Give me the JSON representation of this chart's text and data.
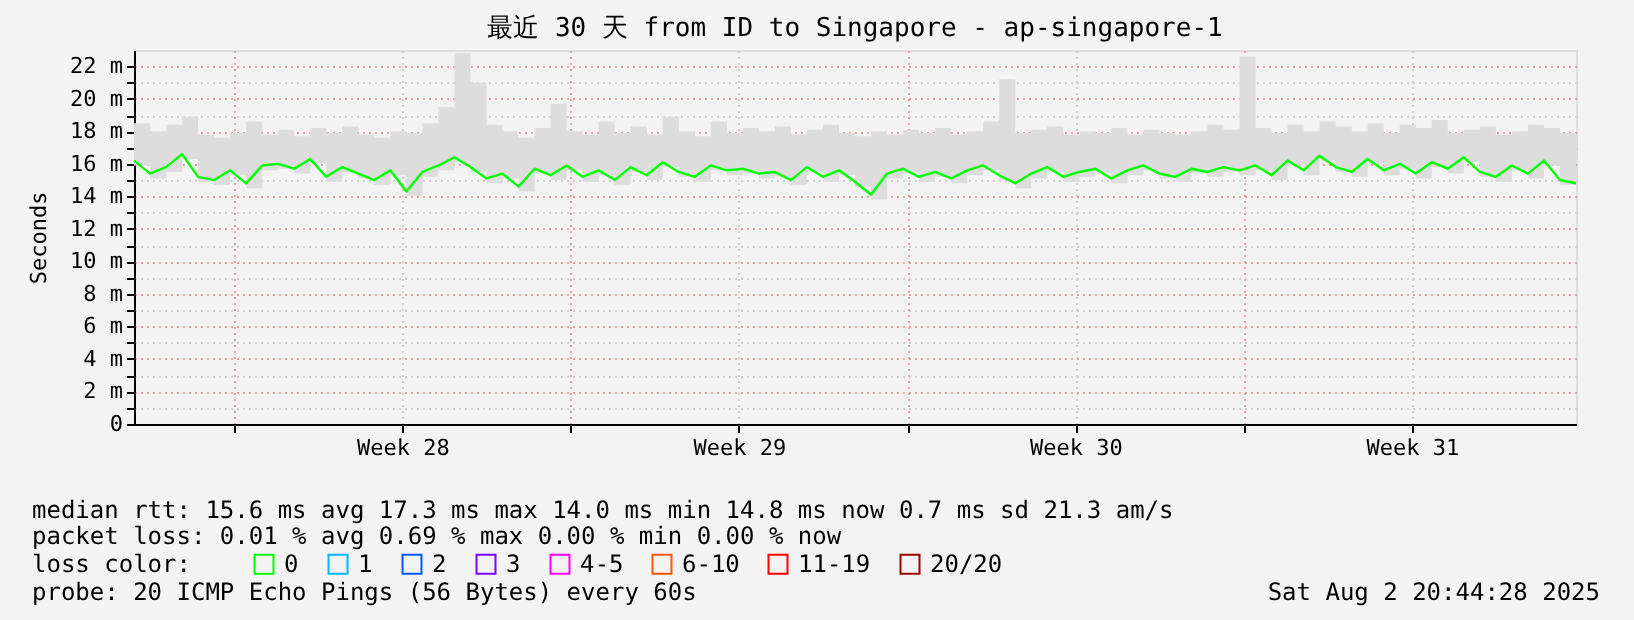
{
  "chart_data": {
    "type": "line",
    "title": "最近 30 天 from ID to Singapore - ap-singapore-1",
    "ylabel": "Seconds",
    "x": [
      "2025-07-03T22:00",
      "2025-07-04T06:00",
      "2025-07-04T14:00",
      "2025-07-04T22:00",
      "2025-07-05T06:00",
      "2025-07-05T14:00",
      "2025-07-05T22:00",
      "2025-07-06T06:00",
      "2025-07-06T14:00",
      "2025-07-06T22:00",
      "2025-07-07T06:00",
      "2025-07-07T14:00",
      "2025-07-07T22:00",
      "2025-07-08T06:00",
      "2025-07-08T14:00",
      "2025-07-08T22:00",
      "2025-07-09T06:00",
      "2025-07-09T14:00",
      "2025-07-09T22:00",
      "2025-07-10T06:00",
      "2025-07-10T14:00",
      "2025-07-10T22:00",
      "2025-07-11T06:00",
      "2025-07-11T14:00",
      "2025-07-11T22:00",
      "2025-07-12T06:00",
      "2025-07-12T14:00",
      "2025-07-12T22:00",
      "2025-07-13T06:00",
      "2025-07-13T14:00",
      "2025-07-13T22:00",
      "2025-07-14T06:00",
      "2025-07-14T14:00",
      "2025-07-14T22:00",
      "2025-07-15T06:00",
      "2025-07-15T14:00",
      "2025-07-15T22:00",
      "2025-07-16T06:00",
      "2025-07-16T14:00",
      "2025-07-16T22:00",
      "2025-07-17T06:00",
      "2025-07-17T14:00",
      "2025-07-17T22:00",
      "2025-07-18T06:00",
      "2025-07-18T14:00",
      "2025-07-18T22:00",
      "2025-07-19T06:00",
      "2025-07-19T14:00",
      "2025-07-19T22:00",
      "2025-07-20T06:00",
      "2025-07-20T14:00",
      "2025-07-20T22:00",
      "2025-07-21T06:00",
      "2025-07-21T14:00",
      "2025-07-21T22:00",
      "2025-07-22T06:00",
      "2025-07-22T14:00",
      "2025-07-22T22:00",
      "2025-07-23T06:00",
      "2025-07-23T14:00",
      "2025-07-23T22:00",
      "2025-07-24T06:00",
      "2025-07-24T14:00",
      "2025-07-24T22:00",
      "2025-07-25T06:00",
      "2025-07-25T14:00",
      "2025-07-25T22:00",
      "2025-07-26T06:00",
      "2025-07-26T14:00",
      "2025-07-26T22:00",
      "2025-07-27T06:00",
      "2025-07-27T14:00",
      "2025-07-27T22:00",
      "2025-07-28T06:00",
      "2025-07-28T14:00",
      "2025-07-28T22:00",
      "2025-07-29T06:00",
      "2025-07-29T14:00",
      "2025-07-29T22:00",
      "2025-07-30T06:00",
      "2025-07-30T14:00",
      "2025-07-30T22:00",
      "2025-07-31T06:00",
      "2025-07-31T14:00",
      "2025-07-31T22:00",
      "2025-08-01T06:00",
      "2025-08-01T14:00",
      "2025-08-01T22:00",
      "2025-08-02T06:00",
      "2025-08-02T14:00",
      "2025-08-02T22:00"
    ],
    "xlim": [
      "2025-07-03T22:00",
      "2025-08-02T22:00"
    ],
    "xticks": [
      {
        "value": "2025-07-06T00:00",
        "label": null
      },
      {
        "value": "2025-07-09T12:00",
        "label": "Week 28"
      },
      {
        "value": "2025-07-13T00:00",
        "label": null
      },
      {
        "value": "2025-07-16T12:00",
        "label": "Week 29"
      },
      {
        "value": "2025-07-20T00:00",
        "label": null
      },
      {
        "value": "2025-07-23T12:00",
        "label": "Week 30"
      },
      {
        "value": "2025-07-27T00:00",
        "label": null
      },
      {
        "value": "2025-07-30T12:00",
        "label": "Week 31"
      }
    ],
    "ylim": [
      0,
      23
    ],
    "yticks": [
      {
        "value": 0,
        "label": "0"
      },
      {
        "value": 1,
        "label": null
      },
      {
        "value": 2,
        "label": "2 m"
      },
      {
        "value": 3,
        "label": null
      },
      {
        "value": 4,
        "label": "4 m"
      },
      {
        "value": 5,
        "label": null
      },
      {
        "value": 6,
        "label": "6 m"
      },
      {
        "value": 7,
        "label": null
      },
      {
        "value": 8,
        "label": "8 m"
      },
      {
        "value": 9,
        "label": null
      },
      {
        "value": 10,
        "label": "10 m"
      },
      {
        "value": 11,
        "label": null
      },
      {
        "value": 12,
        "label": "12 m"
      },
      {
        "value": 13,
        "label": null
      },
      {
        "value": 14,
        "label": "14 m"
      },
      {
        "value": 15,
        "label": null
      },
      {
        "value": 16,
        "label": "16 m"
      },
      {
        "value": 17,
        "label": null
      },
      {
        "value": 18,
        "label": "18 m"
      },
      {
        "value": 19,
        "label": null
      },
      {
        "value": 20,
        "label": "20 m"
      },
      {
        "value": 21,
        "label": null
      },
      {
        "value": 22,
        "label": "22 m"
      }
    ],
    "grid": true,
    "legend": "bottom",
    "legend_title": "loss color:",
    "annotations": [
      "median rtt:  15.6 ms avg  17.3 ms max  14.0 ms min  14.8 ms now  0.7 ms sd  21.3   am/s",
      "packet loss: 0.01 % avg  0.69 % max  0.00 % min  0.00 % now",
      "probe:       20 ICMP Echo Pings (56 Bytes) every 60s",
      "Sat Aug  2 20:44:28 2025"
    ],
    "series": [
      {
        "name": "0",
        "color": "#00ff00",
        "values": [
          16.2,
          15.4,
          15.8,
          16.6,
          15.2,
          15.0,
          15.6,
          14.8,
          15.9,
          16.0,
          15.7,
          16.3,
          15.2,
          15.8,
          15.4,
          15.0,
          15.6,
          14.3,
          15.5,
          15.9,
          16.4,
          15.8,
          15.1,
          15.4,
          14.6,
          15.7,
          15.3,
          15.9,
          15.2,
          15.6,
          15.0,
          15.8,
          15.3,
          16.1,
          15.5,
          15.2,
          15.9,
          15.6,
          15.7,
          15.4,
          15.5,
          15.0,
          15.8,
          15.2,
          15.6,
          14.9,
          14.1,
          15.4,
          15.7,
          15.2,
          15.5,
          15.1,
          15.6,
          15.9,
          15.3,
          14.8,
          15.4,
          15.8,
          15.2,
          15.5,
          15.7,
          15.1,
          15.6,
          15.9,
          15.4,
          15.2,
          15.7,
          15.5,
          15.8,
          15.6,
          15.9,
          15.3,
          16.2,
          15.6,
          16.5,
          15.8,
          15.5,
          16.3,
          15.6,
          16.0,
          15.4,
          16.1,
          15.7,
          16.4,
          15.5,
          15.2,
          15.9,
          15.4,
          16.2,
          15.0,
          14.8
        ],
        "lower": [
          15.9,
          15.1,
          15.5,
          16.3,
          14.9,
          14.7,
          15.3,
          14.5,
          15.6,
          15.7,
          15.4,
          16.0,
          14.9,
          15.5,
          15.1,
          14.7,
          15.3,
          14.0,
          15.2,
          15.6,
          16.1,
          15.5,
          14.8,
          15.1,
          14.3,
          15.4,
          15.0,
          15.6,
          14.9,
          15.3,
          14.7,
          15.5,
          15.0,
          15.8,
          15.2,
          14.9,
          15.6,
          15.3,
          15.4,
          15.1,
          15.2,
          14.7,
          15.5,
          14.9,
          15.3,
          14.6,
          13.8,
          15.1,
          15.4,
          14.9,
          15.2,
          14.8,
          15.3,
          15.6,
          15.0,
          14.5,
          15.1,
          15.5,
          14.9,
          15.2,
          15.4,
          14.8,
          15.3,
          15.6,
          15.1,
          14.9,
          15.4,
          15.2,
          15.5,
          15.3,
          15.6,
          15.0,
          15.9,
          15.3,
          16.2,
          15.5,
          15.2,
          16.0,
          15.3,
          15.7,
          15.1,
          15.8,
          15.4,
          16.1,
          15.2,
          14.9,
          15.6,
          15.1,
          15.9,
          14.7,
          14.5
        ],
        "upper": [
          18.5,
          18.0,
          18.4,
          18.9,
          17.8,
          17.6,
          17.9,
          18.6,
          17.8,
          18.1,
          17.7,
          18.2,
          17.9,
          18.3,
          17.8,
          17.6,
          18.0,
          17.9,
          18.5,
          19.5,
          22.8,
          21.0,
          18.4,
          18.0,
          17.6,
          18.2,
          19.7,
          18.0,
          17.8,
          18.6,
          17.9,
          18.3,
          17.8,
          18.9,
          18.0,
          17.7,
          18.6,
          17.9,
          18.2,
          18.0,
          18.3,
          17.8,
          18.1,
          18.4,
          17.9,
          17.7,
          18.0,
          17.8,
          18.1,
          17.9,
          18.2,
          17.8,
          18.0,
          18.6,
          21.2,
          17.9,
          18.1,
          18.3,
          17.8,
          18.0,
          17.9,
          18.2,
          17.8,
          18.1,
          17.9,
          17.8,
          18.0,
          18.4,
          18.1,
          22.6,
          18.2,
          17.9,
          18.4,
          18.0,
          18.6,
          18.3,
          18.0,
          18.5,
          17.9,
          18.4,
          18.2,
          18.7,
          17.9,
          18.1,
          18.3,
          17.8,
          18.0,
          18.4,
          18.2,
          17.9,
          18.1
        ]
      },
      {
        "name": "1",
        "color": "#00b8ff",
        "values": [
          null,
          null,
          null,
          null,
          null,
          null,
          null,
          null,
          null,
          null,
          null,
          null,
          null,
          null,
          null,
          null,
          null,
          null,
          null,
          null,
          null,
          null,
          null,
          null,
          null,
          null,
          null,
          null,
          null,
          null,
          null,
          null,
          null,
          null,
          null,
          null,
          null,
          null,
          null,
          null,
          null,
          null,
          null,
          null,
          null,
          null,
          null,
          null,
          null,
          null,
          null,
          null,
          null,
          null,
          null,
          null,
          null,
          null,
          null,
          null,
          null,
          null,
          null,
          null,
          null,
          null,
          null,
          null,
          null,
          null,
          null,
          null,
          null,
          null,
          null,
          null,
          null,
          null,
          null,
          null,
          null,
          null,
          null,
          null,
          null,
          null,
          null,
          null,
          null,
          null,
          null
        ]
      },
      {
        "name": "2",
        "color": "#0059ff",
        "values": [
          null,
          null,
          null,
          null,
          null,
          null,
          null,
          null,
          null,
          null,
          null,
          null,
          null,
          null,
          null,
          null,
          null,
          null,
          null,
          null,
          null,
          null,
          null,
          null,
          null,
          null,
          null,
          null,
          null,
          null,
          null,
          null,
          null,
          null,
          null,
          null,
          null,
          null,
          null,
          null,
          null,
          null,
          null,
          null,
          null,
          null,
          null,
          null,
          null,
          null,
          null,
          null,
          null,
          null,
          null,
          null,
          null,
          null,
          null,
          null,
          null,
          null,
          null,
          null,
          null,
          null,
          null,
          null,
          null,
          null,
          null,
          null,
          null,
          null,
          null,
          null,
          null,
          null,
          null,
          null,
          null,
          null,
          null,
          null,
          null,
          null,
          null,
          null,
          null,
          null,
          null
        ]
      },
      {
        "name": "3",
        "color": "#7e00ff",
        "values": [
          null,
          null,
          null,
          null,
          null,
          null,
          null,
          null,
          null,
          null,
          null,
          null,
          null,
          null,
          null,
          null,
          null,
          null,
          null,
          null,
          null,
          null,
          null,
          null,
          null,
          null,
          null,
          null,
          null,
          null,
          null,
          null,
          null,
          null,
          null,
          null,
          null,
          null,
          null,
          null,
          null,
          null,
          null,
          null,
          null,
          null,
          null,
          null,
          null,
          null,
          null,
          null,
          null,
          null,
          null,
          null,
          null,
          null,
          null,
          null,
          null,
          null,
          null,
          null,
          null,
          null,
          null,
          null,
          null,
          null,
          null,
          null,
          null,
          null,
          null,
          null,
          null,
          null,
          null,
          null,
          null,
          null,
          null,
          null,
          null,
          null,
          null,
          null,
          null,
          null,
          null
        ]
      },
      {
        "name": "4-5",
        "color": "#ff00ff",
        "values": [
          null,
          null,
          null,
          null,
          null,
          null,
          null,
          null,
          null,
          null,
          null,
          null,
          null,
          null,
          null,
          null,
          null,
          null,
          null,
          null,
          null,
          null,
          null,
          null,
          null,
          null,
          null,
          null,
          null,
          null,
          null,
          null,
          null,
          null,
          null,
          null,
          null,
          null,
          null,
          null,
          null,
          null,
          null,
          null,
          null,
          null,
          null,
          null,
          null,
          null,
          null,
          null,
          null,
          null,
          null,
          null,
          null,
          null,
          null,
          null,
          null,
          null,
          null,
          null,
          null,
          null,
          null,
          null,
          null,
          null,
          null,
          null,
          null,
          null,
          null,
          null,
          null,
          null,
          null,
          null,
          null,
          null,
          null,
          null,
          null,
          null,
          null,
          null,
          null,
          null,
          null
        ]
      },
      {
        "name": "6-10",
        "color": "#ff5500",
        "values": [
          null,
          null,
          null,
          null,
          null,
          null,
          null,
          null,
          null,
          null,
          null,
          null,
          null,
          null,
          null,
          null,
          null,
          null,
          null,
          null,
          null,
          null,
          null,
          null,
          null,
          null,
          null,
          null,
          null,
          null,
          null,
          null,
          null,
          null,
          null,
          null,
          null,
          null,
          null,
          null,
          null,
          null,
          null,
          null,
          null,
          null,
          null,
          null,
          null,
          null,
          null,
          null,
          null,
          null,
          null,
          null,
          null,
          null,
          null,
          null,
          null,
          null,
          null,
          null,
          null,
          null,
          null,
          null,
          null,
          null,
          null,
          null,
          null,
          null,
          null,
          null,
          null,
          null,
          null,
          null,
          null,
          null,
          null,
          null,
          null,
          null,
          null,
          null,
          null,
          null,
          null
        ]
      },
      {
        "name": "11-19",
        "color": "#ff0000",
        "values": [
          null,
          null,
          null,
          null,
          null,
          null,
          null,
          null,
          null,
          null,
          null,
          null,
          null,
          null,
          null,
          null,
          null,
          null,
          null,
          null,
          null,
          null,
          null,
          null,
          null,
          null,
          null,
          null,
          null,
          null,
          null,
          null,
          null,
          null,
          null,
          null,
          null,
          null,
          null,
          null,
          null,
          null,
          null,
          null,
          null,
          null,
          null,
          null,
          null,
          null,
          null,
          null,
          null,
          null,
          null,
          null,
          null,
          null,
          null,
          null,
          null,
          null,
          null,
          null,
          null,
          null,
          null,
          null,
          null,
          null,
          null,
          null,
          null,
          null,
          null,
          null,
          null,
          null,
          null,
          null,
          null,
          null,
          null,
          null,
          null,
          null,
          null,
          null,
          null,
          null,
          null
        ]
      },
      {
        "name": "20/20",
        "color": "#a10000",
        "values": [
          null,
          null,
          null,
          null,
          null,
          null,
          null,
          null,
          null,
          null,
          null,
          null,
          null,
          null,
          null,
          null,
          null,
          null,
          null,
          null,
          null,
          null,
          null,
          null,
          null,
          null,
          null,
          null,
          null,
          null,
          null,
          null,
          null,
          null,
          null,
          null,
          null,
          null,
          null,
          null,
          null,
          null,
          null,
          null,
          null,
          null,
          null,
          null,
          null,
          null,
          null,
          null,
          null,
          null,
          null,
          null,
          null,
          null,
          null,
          null,
          null,
          null,
          null,
          null,
          null,
          null,
          null,
          null,
          null,
          null,
          null,
          null,
          null,
          null,
          null,
          null,
          null,
          null,
          null,
          null,
          null,
          null,
          null,
          null,
          null,
          null,
          null,
          null,
          null,
          null,
          null
        ]
      }
    ]
  }
}
